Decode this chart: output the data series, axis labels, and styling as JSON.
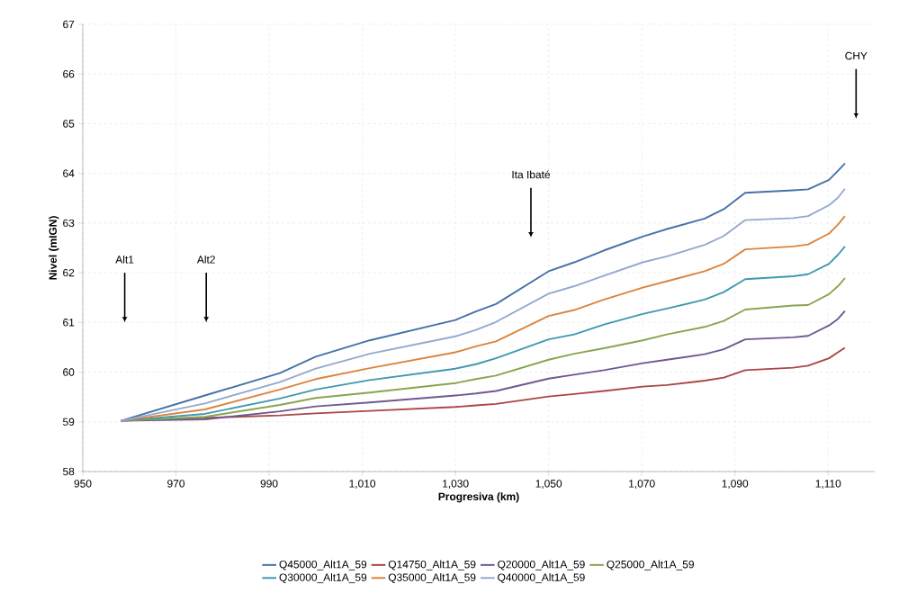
{
  "chart_data": {
    "type": "line",
    "xlabel": "Progresiva (km)",
    "ylabel": "Nivel (mIGN)",
    "x": [
      958.2,
      976.2,
      992.3,
      1000,
      1011.6,
      1030,
      1034.4,
      1038.7,
      1050,
      1055.5,
      1061.9,
      1070.2,
      1075.4,
      1083.5,
      1087.6,
      1092.2,
      1102.5,
      1105.7,
      1110.2,
      1112.1,
      1113.6
    ],
    "series": [
      {
        "name": "Q45000_Alt1A_59",
        "color": "#4572a7",
        "values": [
          59.02,
          59.53,
          59.98,
          60.31,
          60.64,
          61.05,
          61.22,
          61.37,
          62.03,
          62.21,
          62.45,
          62.73,
          62.88,
          63.09,
          63.28,
          63.61,
          63.66,
          63.68,
          63.87,
          64.05,
          64.2
        ]
      },
      {
        "name": "Q14750_Alt1A_59",
        "color": "#aa4643",
        "values": [
          59.02,
          59.08,
          59.13,
          59.17,
          59.22,
          59.3,
          59.33,
          59.36,
          59.51,
          59.56,
          59.62,
          59.71,
          59.74,
          59.83,
          59.89,
          60.04,
          60.09,
          60.13,
          60.28,
          60.4,
          60.49
        ]
      },
      {
        "name": "Q20000_Alt1A_59",
        "color": "#71588f",
        "values": [
          59.02,
          59.05,
          59.21,
          59.31,
          59.39,
          59.53,
          59.57,
          59.62,
          59.87,
          59.95,
          60.04,
          60.18,
          60.25,
          60.36,
          60.46,
          60.66,
          60.7,
          60.73,
          60.94,
          61.07,
          61.23
        ]
      },
      {
        "name": "Q25000_Alt1A_59",
        "color": "#89a54e",
        "values": [
          59.02,
          59.1,
          59.34,
          59.48,
          59.59,
          59.78,
          59.86,
          59.93,
          60.25,
          60.37,
          60.48,
          60.64,
          60.76,
          60.91,
          61.03,
          61.26,
          61.34,
          61.35,
          61.57,
          61.73,
          61.89
        ]
      },
      {
        "name": "Q30000_Alt1A_59",
        "color": "#4198af",
        "values": [
          59.02,
          59.16,
          59.47,
          59.65,
          59.84,
          60.07,
          60.16,
          60.28,
          60.66,
          60.76,
          60.96,
          61.17,
          61.28,
          61.46,
          61.61,
          61.87,
          61.93,
          61.97,
          62.18,
          62.36,
          62.53
        ]
      },
      {
        "name": "Q35000_Alt1A_59",
        "color": "#db843d",
        "values": [
          59.02,
          59.25,
          59.65,
          59.86,
          60.08,
          60.4,
          60.52,
          60.62,
          61.13,
          61.25,
          61.46,
          61.7,
          61.83,
          62.03,
          62.18,
          62.47,
          62.53,
          62.57,
          62.79,
          62.97,
          63.14
        ]
      },
      {
        "name": "Q40000_Alt1A_59",
        "color": "#93a9cf",
        "values": [
          59.02,
          59.37,
          59.8,
          60.07,
          60.37,
          60.72,
          60.85,
          61.01,
          61.58,
          61.73,
          61.94,
          62.21,
          62.33,
          62.56,
          62.74,
          63.06,
          63.1,
          63.14,
          63.36,
          63.51,
          63.69
        ]
      }
    ],
    "xlim": [
      950,
      1120
    ],
    "ylim": [
      58,
      67
    ],
    "xticks": [
      950,
      970,
      990,
      {
        "value": 1010,
        "label": "1,010"
      },
      {
        "value": 1030,
        "label": "1,030"
      },
      {
        "value": 1050,
        "label": "1,050"
      },
      {
        "value": 1070,
        "label": "1,070"
      },
      {
        "value": 1090,
        "label": "1,090"
      },
      {
        "value": 1110,
        "label": "1,110"
      }
    ],
    "yticks": [
      58,
      59,
      60,
      61,
      62,
      63,
      64,
      65,
      66,
      67
    ],
    "ref_lines": [
      {
        "axis": "x",
        "value": 959,
        "label": "Alt1"
      },
      {
        "axis": "x",
        "value": 976.5,
        "label": "Alt2"
      },
      {
        "axis": "x",
        "value": 1046.2,
        "label": "Ita Ibaté"
      },
      {
        "axis": "x",
        "value": 1116,
        "label": "CHY"
      }
    ],
    "grid": true,
    "legend": "bottom",
    "marker": "none",
    "line_style": "solid"
  }
}
